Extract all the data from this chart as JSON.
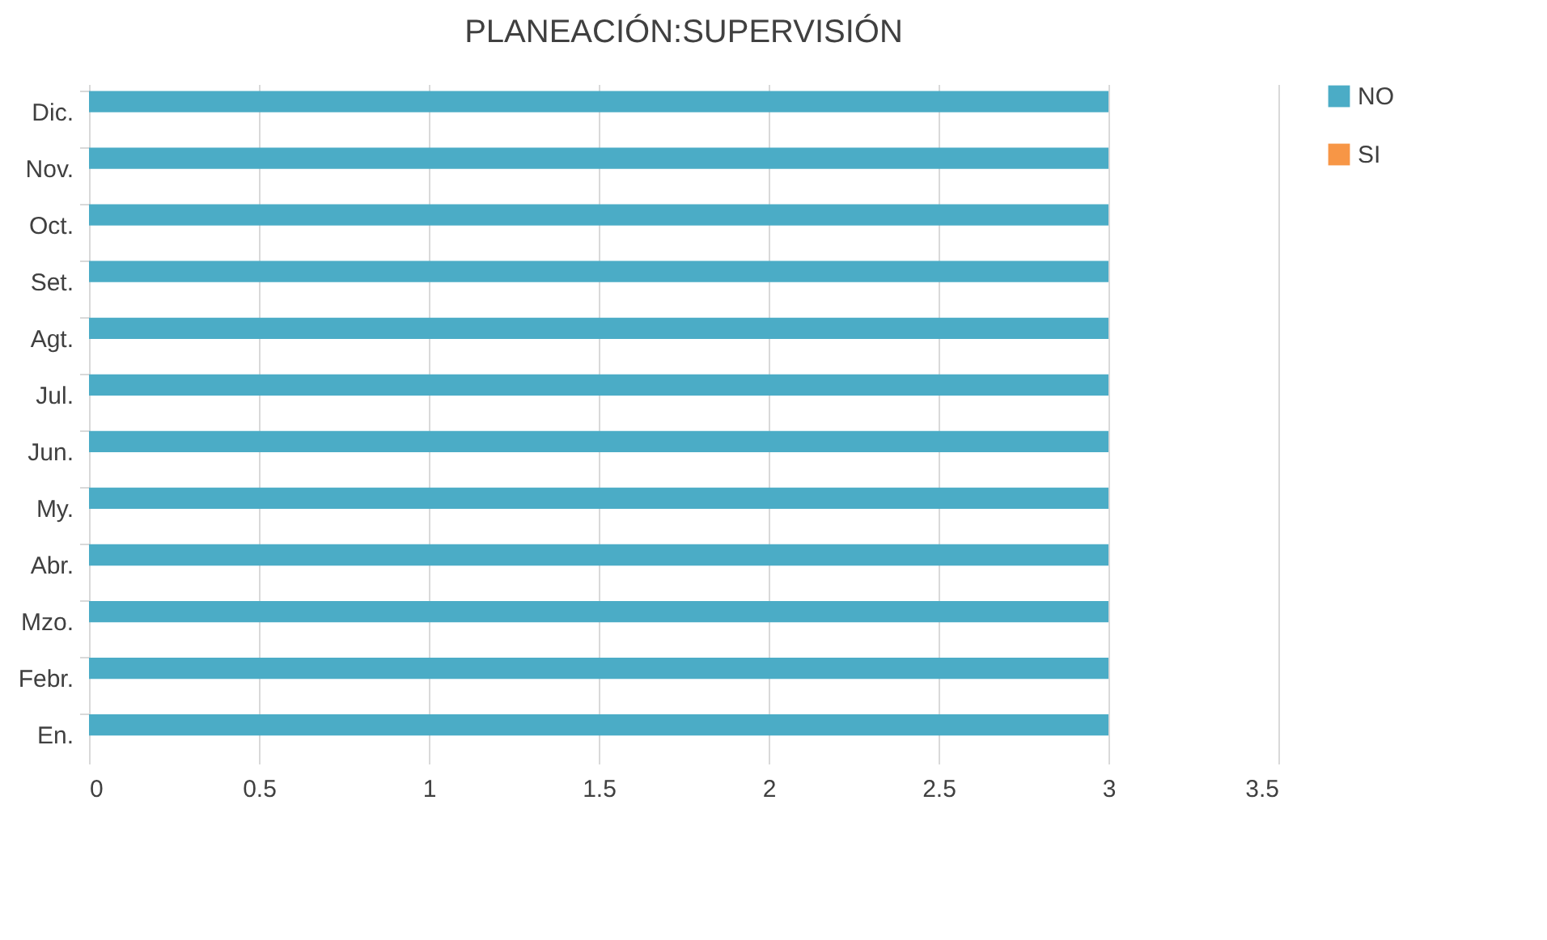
{
  "chart_data": {
    "type": "bar",
    "orientation": "horizontal",
    "title": "PLANEACIÓN:SUPERVISIÓN",
    "categories": [
      "Dic.",
      "Nov.",
      "Oct.",
      "Set.",
      "Agt.",
      "Jul.",
      "Jun.",
      "My.",
      "Abr.",
      "Mzo.",
      "Febr.",
      "En."
    ],
    "series": [
      {
        "name": "NO",
        "color": "#4bacc6",
        "values": [
          3,
          3,
          3,
          3,
          3,
          3,
          3,
          3,
          3,
          3,
          3,
          3
        ]
      },
      {
        "name": "SI",
        "color": "#f79646",
        "values": [
          0,
          0,
          0,
          0,
          0,
          0,
          0,
          0,
          0,
          0,
          0,
          0
        ]
      }
    ],
    "xlim": [
      0,
      3.5
    ],
    "xticks": [
      0,
      0.5,
      1,
      1.5,
      2,
      2.5,
      3,
      3.5
    ],
    "grid": "x",
    "legend": "right"
  }
}
